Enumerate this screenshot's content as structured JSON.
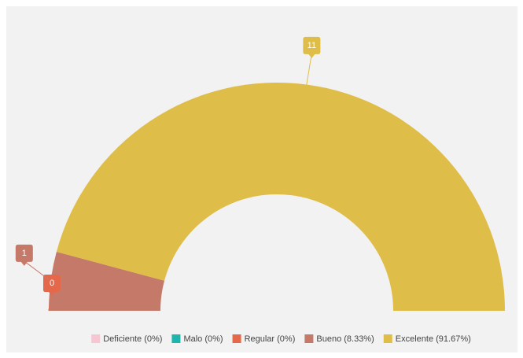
{
  "chart_data": {
    "type": "half-donut",
    "categories": [
      "Deficiente (0%)",
      "Malo (0%)",
      "Regular (0%)",
      "Bueno (8.33%)",
      "Excelente (91.67%)"
    ],
    "values": [
      0,
      0,
      0,
      1,
      11
    ],
    "colors": [
      "#f6c6d2",
      "#1fb5ad",
      "#e5684b",
      "#c57a69",
      "#dfbd49"
    ]
  }
}
